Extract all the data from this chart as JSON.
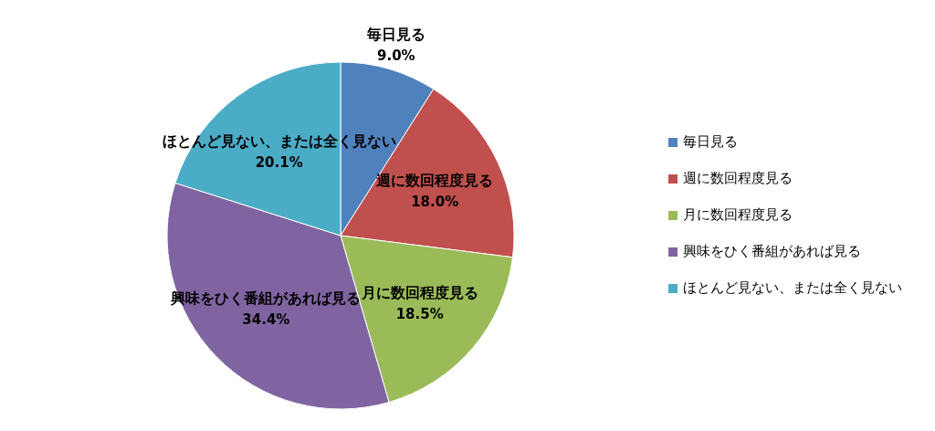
{
  "chart_data": {
    "type": "pie",
    "categories": [
      "毎日見る",
      "週に数回程度見る",
      "月に数回程度見る",
      "興味をひく番組があれば見る",
      "ほとんど見ない、または全く見ない"
    ],
    "values": [
      9.0,
      18.0,
      18.5,
      34.4,
      20.1
    ],
    "value_labels": [
      "9.0%",
      "18.0%",
      "18.5%",
      "34.4%",
      "20.1%"
    ],
    "colors": [
      "#4f81bd",
      "#c0504d",
      "#9bbb59",
      "#8064a2",
      "#4bacc6"
    ],
    "legend": "right"
  }
}
